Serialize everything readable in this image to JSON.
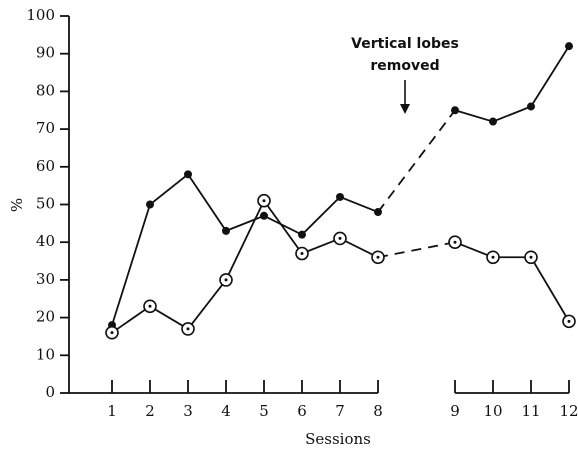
{
  "chart_data": {
    "type": "line",
    "x": [
      1,
      2,
      3,
      4,
      5,
      6,
      7,
      8,
      9,
      10,
      11,
      12
    ],
    "series": [
      {
        "color": "#111111",
        "marker": "filled",
        "values": [
          18,
          50,
          58,
          43,
          47,
          42,
          52,
          48,
          75,
          72,
          76,
          92
        ]
      },
      {
        "color": "#111111",
        "marker": "open",
        "values": [
          16,
          23,
          17,
          30,
          51,
          37,
          41,
          36,
          40,
          36,
          36,
          19
        ]
      }
    ],
    "xlim": [
      0,
      12
    ],
    "xticks": [
      1,
      2,
      3,
      4,
      5,
      6,
      7,
      8,
      9,
      10,
      11,
      12
    ],
    "xbreak": [
      8,
      9
    ],
    "ylim": [
      0,
      100
    ],
    "yticks": [
      0,
      10,
      20,
      30,
      40,
      50,
      60,
      70,
      80,
      90,
      100
    ],
    "xlabel": "Sessions",
    "ylabel": "%",
    "annotation": [
      "Vertical lobes",
      "removed"
    ],
    "grid": false
  }
}
